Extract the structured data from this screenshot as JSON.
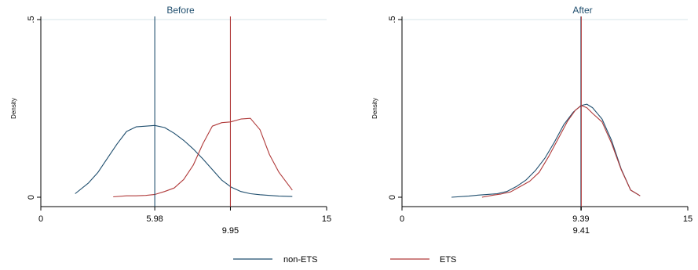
{
  "chart_data": [
    {
      "type": "line",
      "title": "Before",
      "ylabel": "Density",
      "xlabel": "",
      "xlim": [
        0,
        15
      ],
      "ylim": [
        0,
        0.5
      ],
      "x_ticks": [
        "0",
        "15"
      ],
      "y_ticks": [
        "0",
        ".5"
      ],
      "grid": "horizontal at 0.5",
      "series": [
        {
          "name": "non-ETS",
          "color": "#1f4e6e",
          "points": [
            [
              1.8,
              0.01
            ],
            [
              2.5,
              0.04
            ],
            [
              3.0,
              0.07
            ],
            [
              3.5,
              0.11
            ],
            [
              4.0,
              0.15
            ],
            [
              4.5,
              0.185
            ],
            [
              5.0,
              0.198
            ],
            [
              5.5,
              0.2
            ],
            [
              5.98,
              0.202
            ],
            [
              6.5,
              0.196
            ],
            [
              7.0,
              0.18
            ],
            [
              7.5,
              0.16
            ],
            [
              8.0,
              0.136
            ],
            [
              8.5,
              0.108
            ],
            [
              9.0,
              0.078
            ],
            [
              9.5,
              0.048
            ],
            [
              10.0,
              0.028
            ],
            [
              10.5,
              0.016
            ],
            [
              11.0,
              0.01
            ],
            [
              11.5,
              0.007
            ],
            [
              12.0,
              0.005
            ],
            [
              12.5,
              0.003
            ],
            [
              13.2,
              0.002
            ]
          ]
        },
        {
          "name": "ETS",
          "color": "#b03a3a",
          "points": [
            [
              3.8,
              0.001
            ],
            [
              4.5,
              0.004
            ],
            [
              5.0,
              0.004
            ],
            [
              5.5,
              0.005
            ],
            [
              6.0,
              0.008
            ],
            [
              6.5,
              0.016
            ],
            [
              7.0,
              0.026
            ],
            [
              7.5,
              0.05
            ],
            [
              8.0,
              0.09
            ],
            [
              8.5,
              0.15
            ],
            [
              9.0,
              0.2
            ],
            [
              9.5,
              0.21
            ],
            [
              9.95,
              0.212
            ],
            [
              10.5,
              0.22
            ],
            [
              11.0,
              0.222
            ],
            [
              11.5,
              0.19
            ],
            [
              12.0,
              0.12
            ],
            [
              12.5,
              0.07
            ],
            [
              13.2,
              0.02
            ]
          ]
        }
      ],
      "reference_lines": [
        {
          "series": "non-ETS",
          "x": 5.98,
          "label": "5.98",
          "label_row": 1
        },
        {
          "series": "ETS",
          "x": 9.95,
          "label": "9.95",
          "label_row": 2
        }
      ]
    },
    {
      "type": "line",
      "title": "After",
      "ylabel": "Density",
      "xlabel": "",
      "xlim": [
        0,
        15
      ],
      "ylim": [
        0,
        0.5
      ],
      "x_ticks": [
        "0",
        "15"
      ],
      "y_ticks": [
        "0",
        ".5"
      ],
      "grid": "horizontal at 0.5",
      "series": [
        {
          "name": "non-ETS",
          "color": "#1f4e6e",
          "points": [
            [
              2.6,
              0.0
            ],
            [
              3.5,
              0.003
            ],
            [
              4.0,
              0.006
            ],
            [
              4.5,
              0.008
            ],
            [
              5.0,
              0.01
            ],
            [
              5.5,
              0.016
            ],
            [
              6.0,
              0.03
            ],
            [
              6.5,
              0.048
            ],
            [
              7.0,
              0.075
            ],
            [
              7.5,
              0.11
            ],
            [
              8.0,
              0.155
            ],
            [
              8.5,
              0.205
            ],
            [
              9.0,
              0.24
            ],
            [
              9.39,
              0.258
            ],
            [
              9.7,
              0.262
            ],
            [
              10.0,
              0.252
            ],
            [
              10.5,
              0.22
            ],
            [
              11.0,
              0.16
            ],
            [
              11.5,
              0.08
            ],
            [
              12.0,
              0.02
            ],
            [
              12.5,
              0.004
            ]
          ]
        },
        {
          "name": "ETS",
          "color": "#b03a3a",
          "points": [
            [
              4.2,
              0.0
            ],
            [
              4.8,
              0.006
            ],
            [
              5.2,
              0.009
            ],
            [
              5.7,
              0.015
            ],
            [
              6.2,
              0.03
            ],
            [
              6.7,
              0.045
            ],
            [
              7.2,
              0.07
            ],
            [
              7.7,
              0.115
            ],
            [
              8.2,
              0.165
            ],
            [
              8.7,
              0.215
            ],
            [
              9.1,
              0.245
            ],
            [
              9.41,
              0.258
            ],
            [
              9.7,
              0.252
            ],
            [
              10.0,
              0.236
            ],
            [
              10.5,
              0.212
            ],
            [
              11.0,
              0.152
            ],
            [
              11.5,
              0.078
            ],
            [
              12.0,
              0.02
            ],
            [
              12.5,
              0.004
            ]
          ]
        }
      ],
      "reference_lines": [
        {
          "series": "non-ETS",
          "x": 9.39,
          "label": "9.39",
          "label_row": 1
        },
        {
          "series": "ETS",
          "x": 9.41,
          "label": "9.41",
          "label_row": 2
        }
      ]
    }
  ],
  "legend": {
    "position": "bottom",
    "items": [
      {
        "label": "non-ETS",
        "color": "#1f4e6e"
      },
      {
        "label": "ETS",
        "color": "#b03a3a"
      }
    ]
  }
}
